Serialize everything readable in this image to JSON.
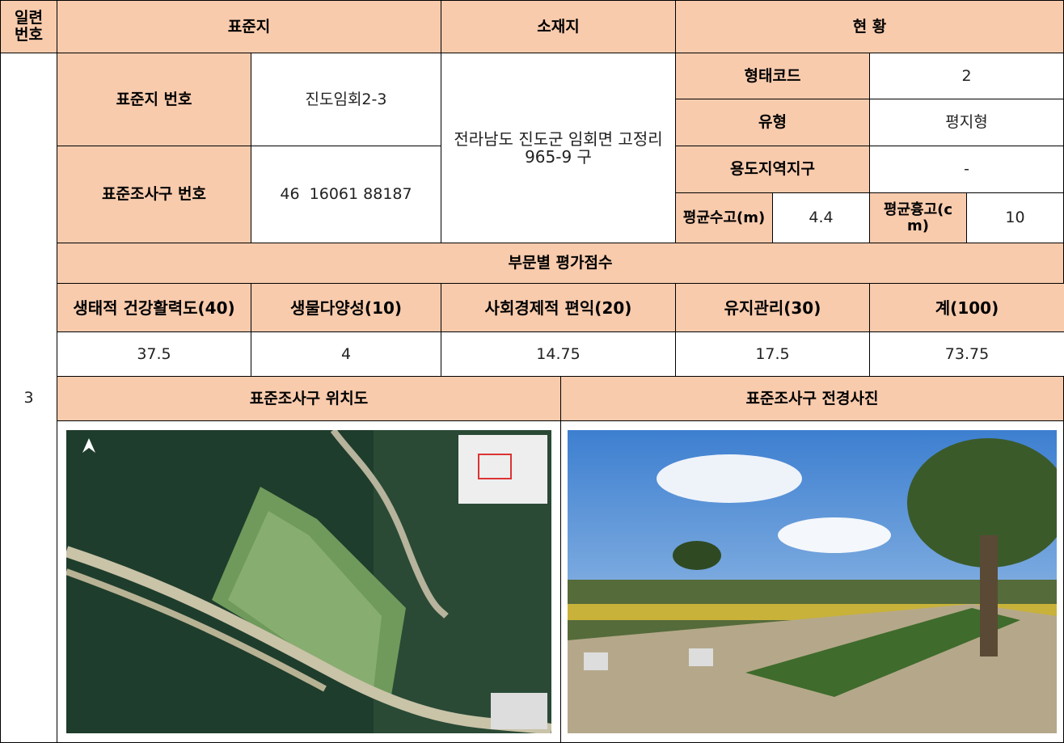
{
  "header": {
    "serial": [
      "일련",
      "번호"
    ],
    "site": "표준지",
    "location": "소재지",
    "status": "현 황"
  },
  "record": {
    "serial": "3",
    "site_number_label": "표준지 번호",
    "site_number": "진도임회2-3",
    "plot_number_label": "표준조사구 번호",
    "plot_number": "46  16061 88187",
    "address": "전라남도 진도군 임회면 고정리 965-9 구",
    "status": {
      "form_code_label": "형태코드",
      "form_code": 2,
      "type_label": "유형",
      "type": "평지형",
      "zoning_label": "용도지역지구",
      "zoning": "-",
      "avg_height_label": "평균수고(m)",
      "avg_height": 4.4,
      "avg_dbh_label": "평균흉고(cm)",
      "avg_dbh": 10
    }
  },
  "scores": {
    "title": "부문별 평가점수",
    "columns": [
      "생태적 건강활력도(40)",
      "생물다양성(10)",
      "사회경제적 편익(20)",
      "유지관리(30)",
      "계(100)"
    ],
    "values": [
      37.5,
      4,
      14.75,
      17.5,
      73.75
    ]
  },
  "panels": {
    "map_title": "표준조사구 위치도",
    "photo_title": "표준조사구 전경사진"
  }
}
